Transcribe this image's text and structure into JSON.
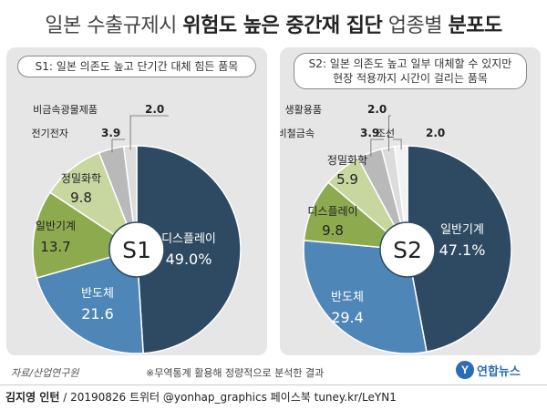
{
  "title": {
    "prefix": "일본 수출규제시 ",
    "emphasis": "위험도 높은 중간재 집단",
    "middle": " 업종별 ",
    "suffix": "분포도"
  },
  "chart_data": [
    {
      "type": "pie",
      "subtitle": "S1: 일본 의존도 높고 단기간 대체 힘든 품목",
      "center_label": "S1",
      "slices": [
        {
          "label": "디스플레이",
          "value": 49.0,
          "value_text": "49.0%",
          "color": "#2e4a62"
        },
        {
          "label": "반도체",
          "value": 21.6,
          "value_text": "21.6",
          "color": "#4f86b8"
        },
        {
          "label": "일반기계",
          "value": 13.7,
          "value_text": "13.7",
          "color": "#8daa4f"
        },
        {
          "label": "정밀화학",
          "value": 9.8,
          "value_text": "9.8",
          "color": "#c8d7a0"
        },
        {
          "label": "전기전자",
          "value": 3.9,
          "value_text": "3.9",
          "color": "#b9b9b9"
        },
        {
          "label": "비금속광물제품",
          "value": 2.0,
          "value_text": "2.0",
          "color": "#dcdcdc"
        }
      ]
    },
    {
      "type": "pie",
      "subtitle_lines": [
        "S2: 일본 의존도 높고 일부 대체할 수 있지만",
        "현장 적용까지 시간이 걸리는 품목"
      ],
      "center_label": "S2",
      "slices": [
        {
          "label": "일반기계",
          "value": 47.1,
          "value_text": "47.1%",
          "color": "#2e4a62"
        },
        {
          "label": "반도체",
          "value": 29.4,
          "value_text": "29.4",
          "color": "#4f86b8"
        },
        {
          "label": "디스플레이",
          "value": 9.8,
          "value_text": "9.8",
          "color": "#8daa4f"
        },
        {
          "label": "정밀화학",
          "value": 5.9,
          "value_text": "5.9",
          "color": "#c8d7a0"
        },
        {
          "label": "비철금속",
          "value": 3.9,
          "value_text": "3.9",
          "color": "#b9b9b9"
        },
        {
          "label": "생활용품",
          "value": 2.0,
          "value_text": "2.0",
          "color": "#dcdcdc"
        },
        {
          "label": "조선",
          "value": 2.0,
          "value_text": "2.0",
          "color": "#f2f2f2"
        }
      ]
    }
  ],
  "source": "자료/산업연구원",
  "note": "※무역통계 활용해 정량적으로 분석한 결과",
  "logo": {
    "mark": "Y",
    "text": "연합뉴스"
  },
  "footer": {
    "author": "김지영 인턴",
    "rest": " / 20190826 트위터 @yonhap_graphics 페이스북 tuney.kr/LeYN1"
  }
}
